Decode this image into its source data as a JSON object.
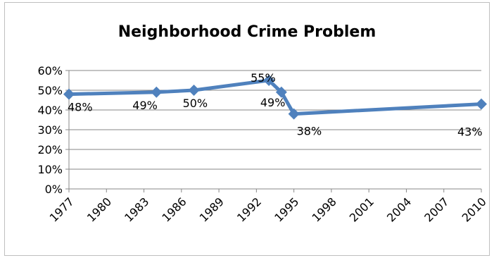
{
  "chart_data": {
    "type": "line",
    "title": "Neighborhood Crime Problem",
    "xlabel": "",
    "ylabel": "",
    "x_tick_labels": [
      "1977",
      "1980",
      "1983",
      "1986",
      "1989",
      "1992",
      "1995",
      "1998",
      "2001",
      "2004",
      "2007",
      "2010"
    ],
    "y_tick_labels": [
      "0%",
      "10%",
      "20%",
      "30%",
      "40%",
      "50%",
      "60%"
    ],
    "xlim": [
      1977,
      2010
    ],
    "ylim": [
      0,
      60
    ],
    "grid": true,
    "legend": "none",
    "series": [
      {
        "color": "#4f81bd",
        "marker": "diamond",
        "points": [
          {
            "x": 1977,
            "y": 48,
            "label": "48%"
          },
          {
            "x": 1984,
            "y": 49,
            "label": "49%"
          },
          {
            "x": 1987,
            "y": 50,
            "label": "50%"
          },
          {
            "x": 1993,
            "y": 55,
            "label": "55%"
          },
          {
            "x": 1994,
            "y": 49,
            "label": "49%"
          },
          {
            "x": 1995,
            "y": 38,
            "label": "38%"
          },
          {
            "x": 2010,
            "y": 43,
            "label": "43%"
          }
        ]
      }
    ]
  }
}
